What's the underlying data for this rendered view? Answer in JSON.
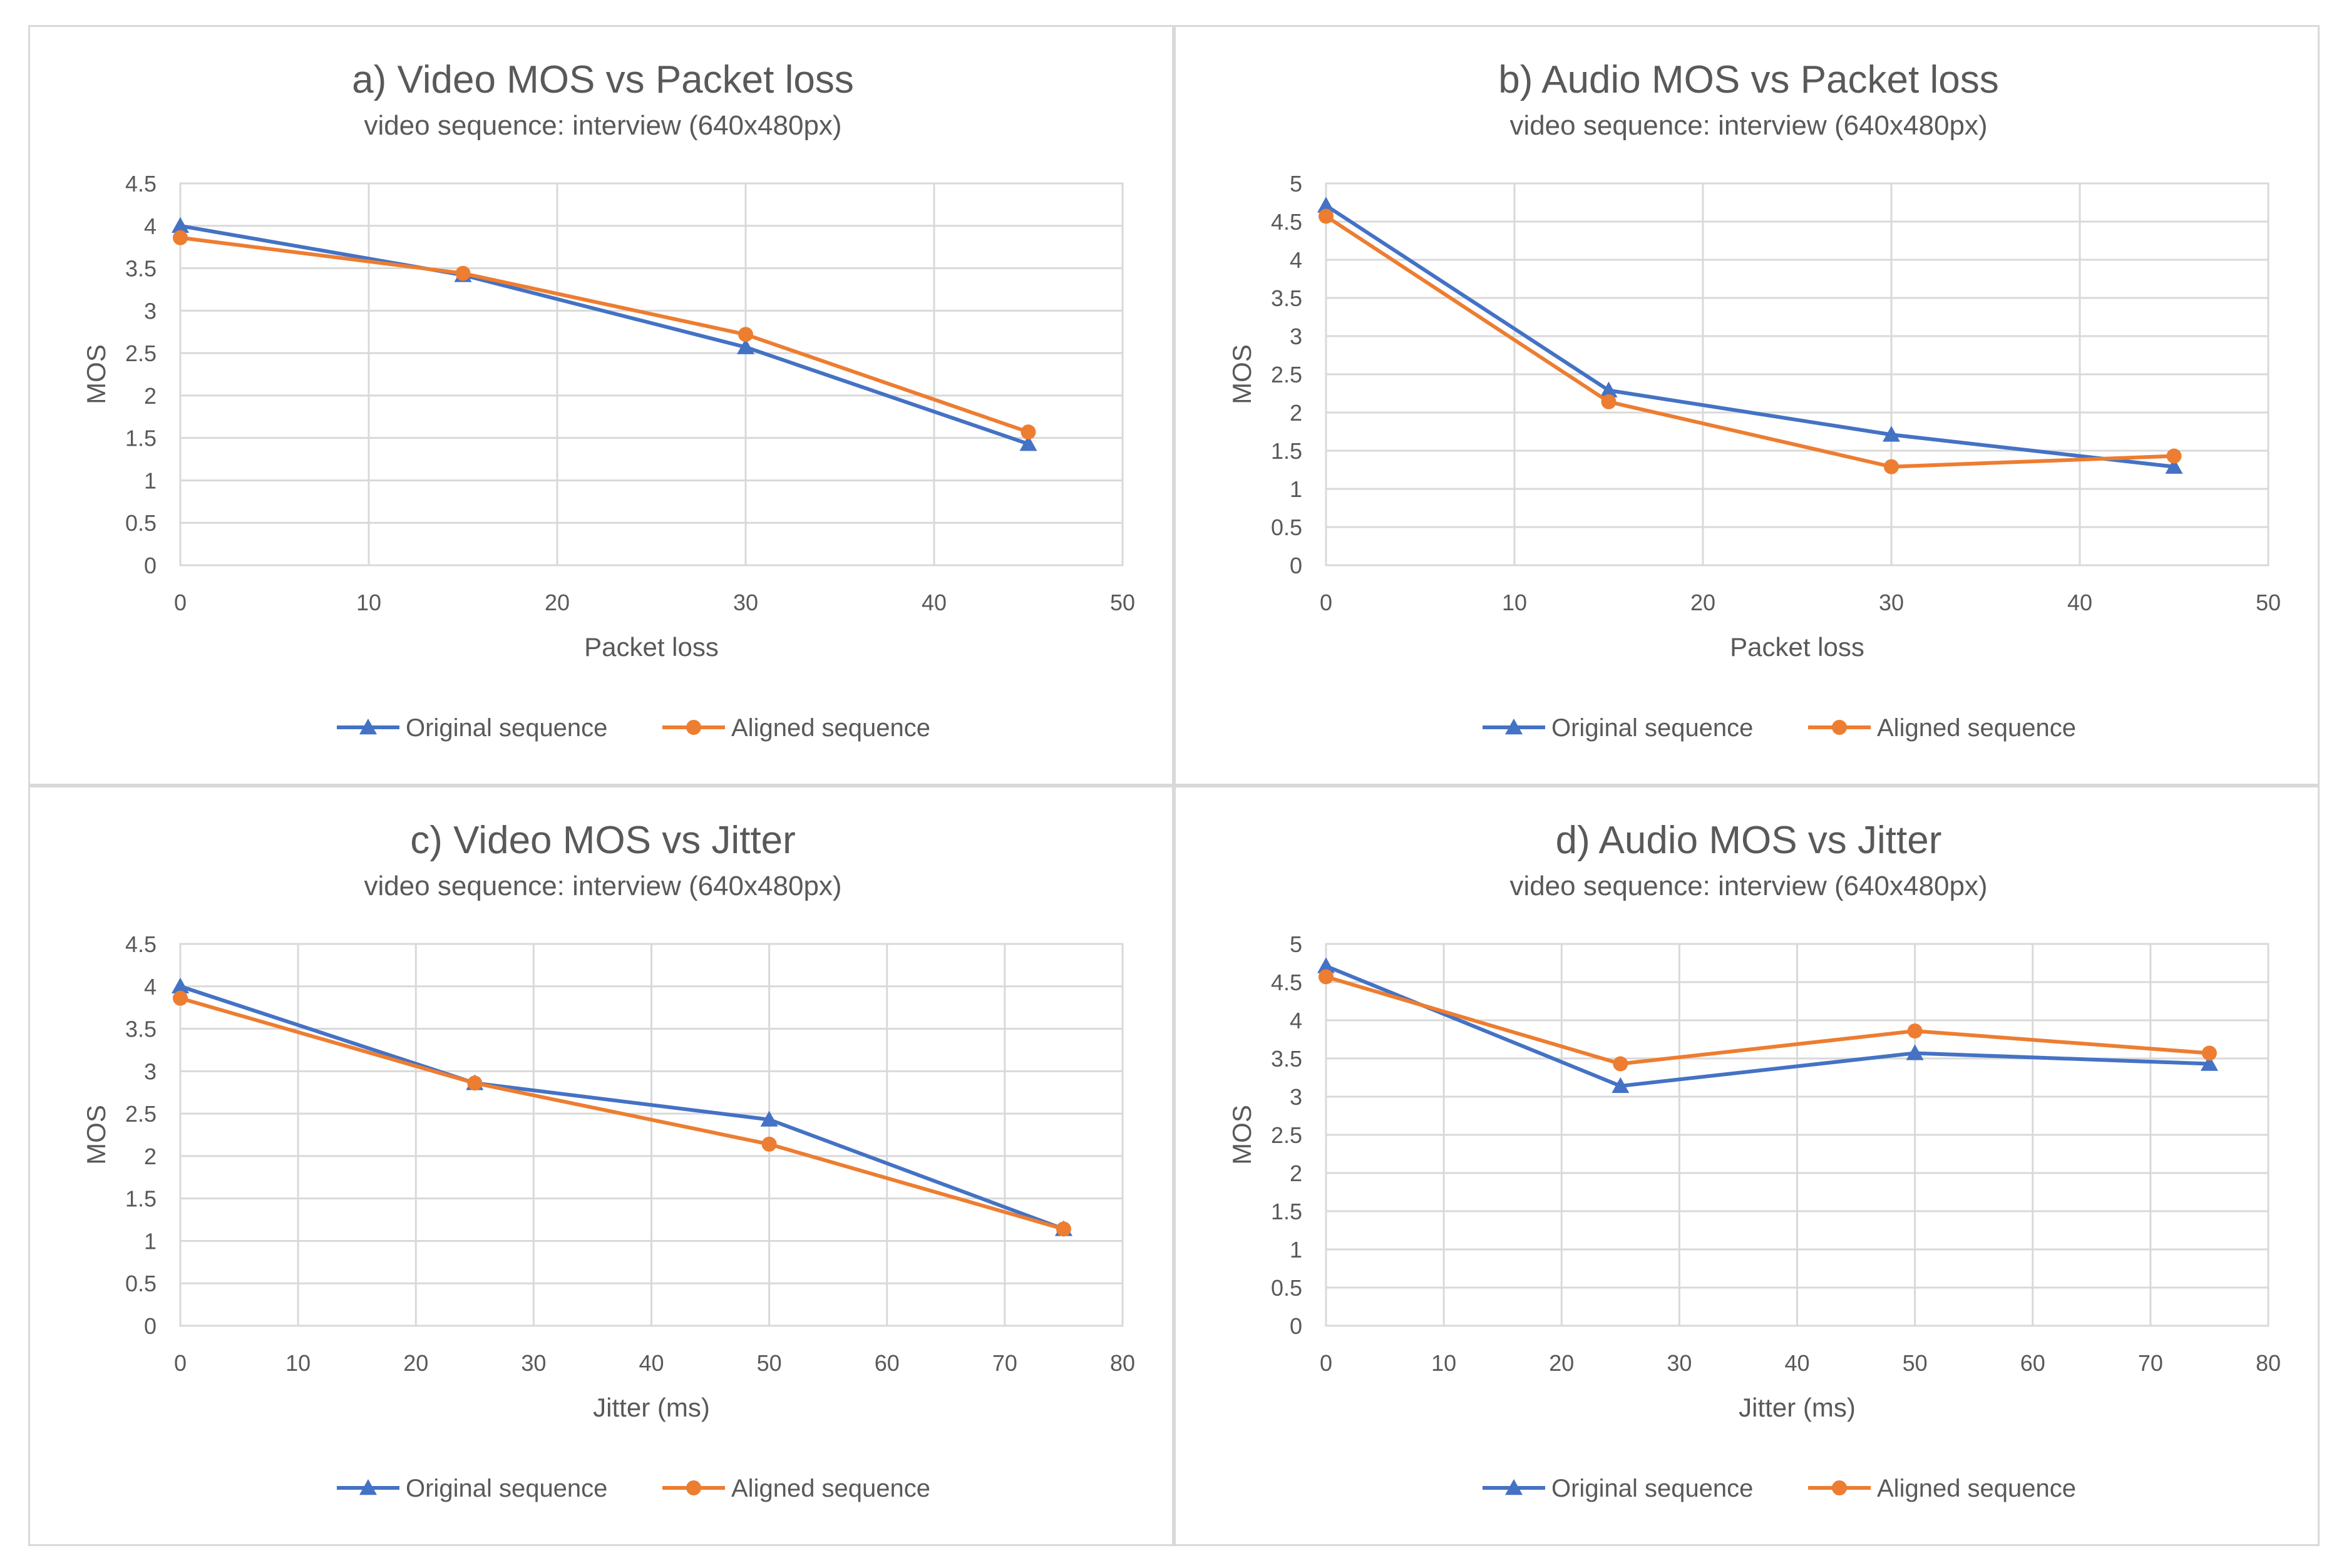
{
  "colors": {
    "original": "#4472C4",
    "aligned": "#ED7D31",
    "grid": "#d9d9d9",
    "text": "#595959"
  },
  "chart_data": [
    {
      "type": "line",
      "title": "a) Video MOS vs Packet loss",
      "subtitle": "video sequence:  interview (640x480px)",
      "xlabel": "Packet loss",
      "ylabel": "MOS",
      "xlim": [
        0,
        50
      ],
      "xticks": [
        0,
        10,
        20,
        30,
        40,
        50
      ],
      "ylim": [
        0,
        4.5
      ],
      "yticks": [
        0,
        0.5,
        1,
        1.5,
        2,
        2.5,
        3,
        3.5,
        4,
        4.5
      ],
      "ytick_labels": [
        "0",
        "0.5",
        "1",
        "1.5",
        "2",
        "2.5",
        "3",
        "3.5",
        "4",
        "4.5"
      ],
      "series": [
        {
          "name": "Original sequence",
          "marker": "triangle",
          "x": [
            0,
            15,
            30,
            45
          ],
          "values": [
            4.0,
            3.42,
            2.57,
            1.43
          ]
        },
        {
          "name": "Aligned sequence",
          "marker": "circle",
          "x": [
            0,
            15,
            30,
            45
          ],
          "values": [
            3.86,
            3.44,
            2.72,
            1.57
          ]
        }
      ],
      "legend": "bottom"
    },
    {
      "type": "line",
      "title": "b) Audio MOS vs Packet loss",
      "subtitle": "video sequence:  interview (640x480px)",
      "xlabel": "Packet loss",
      "ylabel": "MOS",
      "xlim": [
        0,
        50
      ],
      "xticks": [
        0,
        10,
        20,
        30,
        40,
        50
      ],
      "ylim": [
        0,
        5
      ],
      "yticks": [
        0,
        0.5,
        1,
        1.5,
        2,
        2.5,
        3,
        3.5,
        4,
        4.5,
        5
      ],
      "ytick_labels": [
        "0",
        "0.5",
        "1",
        "1.5",
        "2",
        "2.5",
        "3",
        "3.5",
        "4",
        "4.5",
        "5"
      ],
      "series": [
        {
          "name": "Original sequence",
          "marker": "triangle",
          "x": [
            0,
            15,
            30,
            45
          ],
          "values": [
            4.71,
            2.29,
            1.71,
            1.29
          ]
        },
        {
          "name": "Aligned sequence",
          "marker": "circle",
          "x": [
            0,
            15,
            30,
            45
          ],
          "values": [
            4.57,
            2.14,
            1.29,
            1.43
          ]
        }
      ],
      "legend": "bottom"
    },
    {
      "type": "line",
      "title": "c) Video MOS vs Jitter",
      "subtitle": "video sequence:  interview (640x480px)",
      "xlabel": "Jitter (ms)",
      "ylabel": "MOS",
      "xlim": [
        0,
        80
      ],
      "xticks": [
        0,
        10,
        20,
        30,
        40,
        50,
        60,
        70,
        80
      ],
      "ylim": [
        0,
        4.5
      ],
      "yticks": [
        0,
        0.5,
        1,
        1.5,
        2,
        2.5,
        3,
        3.5,
        4,
        4.5
      ],
      "ytick_labels": [
        "0",
        "0.5",
        "1",
        "1.5",
        "2",
        "2.5",
        "3",
        "3.5",
        "4",
        "4.5"
      ],
      "series": [
        {
          "name": "Original sequence",
          "marker": "triangle",
          "x": [
            0,
            25,
            50,
            75
          ],
          "values": [
            4.0,
            2.86,
            2.43,
            1.14
          ]
        },
        {
          "name": "Aligned sequence",
          "marker": "circle",
          "x": [
            0,
            25,
            50,
            75
          ],
          "values": [
            3.86,
            2.86,
            2.14,
            1.14
          ]
        }
      ],
      "legend": "bottom"
    },
    {
      "type": "line",
      "title": "d) Audio MOS vs Jitter",
      "subtitle": "video sequence:  interview (640x480px)",
      "xlabel": "Jitter (ms)",
      "ylabel": "MOS",
      "xlim": [
        0,
        80
      ],
      "xticks": [
        0,
        10,
        20,
        30,
        40,
        50,
        60,
        70,
        80
      ],
      "ylim": [
        0,
        5
      ],
      "yticks": [
        0,
        0.5,
        1,
        1.5,
        2,
        2.5,
        3,
        3.5,
        4,
        4.5,
        5
      ],
      "ytick_labels": [
        "0",
        "0.5",
        "1",
        "1.5",
        "2",
        "2.5",
        "3",
        "3.5",
        "4",
        "4.5",
        "5"
      ],
      "series": [
        {
          "name": "Original sequence",
          "marker": "triangle",
          "x": [
            0,
            25,
            50,
            75
          ],
          "values": [
            4.71,
            3.14,
            3.57,
            3.43
          ]
        },
        {
          "name": "Aligned sequence",
          "marker": "circle",
          "x": [
            0,
            25,
            50,
            75
          ],
          "values": [
            4.57,
            3.43,
            3.86,
            3.57
          ]
        }
      ],
      "legend": "bottom"
    }
  ]
}
